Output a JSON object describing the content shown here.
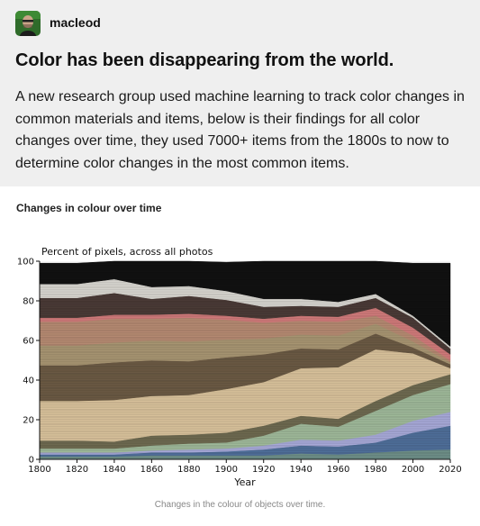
{
  "post": {
    "username": "macleod",
    "title": "Color has been disappearing from the world.",
    "body": "A new research group used machine learning to track color changes in common materials and items, below is their findings for all color changes over time, they used 7000+ items from the 1800s to now to determine color changes in the most common items."
  },
  "chart_heading": "Changes in colour over time",
  "caption": "Changes in the colour of objects over time.",
  "chart_data": {
    "type": "area",
    "title": "Percent of pixels, across all photos",
    "xlabel": "Year",
    "ylabel": "",
    "xlim": [
      1800,
      2020
    ],
    "ylim": [
      0,
      100
    ],
    "x_ticks": [
      1800,
      1820,
      1840,
      1860,
      1880,
      1900,
      1920,
      1940,
      1960,
      1980,
      2000,
      2020
    ],
    "y_ticks": [
      0,
      20,
      40,
      60,
      80,
      100
    ],
    "x": [
      1800,
      1820,
      1840,
      1860,
      1880,
      1900,
      1920,
      1940,
      1960,
      1980,
      2000,
      2020
    ],
    "series": [
      {
        "color": "#6e8f88",
        "values": [
          1.5,
          1.5,
          1.5,
          2,
          2,
          2,
          2,
          3,
          2.5,
          3.5,
          4.5,
          5
        ]
      },
      {
        "color": "#4f6f9a",
        "values": [
          1,
          1,
          1,
          1.5,
          1.5,
          2,
          3,
          4,
          4,
          5,
          9,
          12
        ]
      },
      {
        "color": "#a7a9d8",
        "values": [
          1,
          1,
          1,
          1,
          1.5,
          1.5,
          2,
          3,
          3,
          4,
          6,
          7
        ]
      },
      {
        "color": "#9fb99a",
        "values": [
          2,
          2,
          2,
          2.5,
          3,
          3,
          5,
          8,
          7,
          12,
          13,
          14
        ]
      },
      {
        "color": "#6e6a50",
        "values": [
          4,
          4,
          3.5,
          5,
          4.5,
          5,
          5,
          4,
          4,
          5,
          5,
          5
        ]
      },
      {
        "color": "#d9c29b",
        "values": [
          20,
          20,
          21,
          20,
          20,
          22,
          22,
          24,
          26,
          26,
          16,
          3
        ]
      },
      {
        "color": "#6b5a44",
        "values": [
          18,
          18,
          19,
          18,
          17,
          16,
          14,
          10,
          9,
          8,
          3,
          2
        ]
      },
      {
        "color": "#a89572",
        "values": [
          10,
          10,
          10,
          10,
          10,
          9,
          8,
          7,
          7,
          5,
          3,
          1
        ]
      },
      {
        "color": "#b68a72",
        "values": [
          12,
          12,
          12,
          11,
          12,
          10,
          8,
          7,
          7,
          4,
          3,
          1
        ]
      },
      {
        "color": "#d07a7a",
        "values": [
          2,
          2,
          2,
          2,
          2,
          2,
          2,
          2.5,
          2.5,
          4,
          4,
          3
        ]
      },
      {
        "color": "#4a3a36",
        "values": [
          10,
          10,
          11,
          8,
          9,
          8,
          6,
          5,
          5,
          5,
          5,
          3
        ]
      },
      {
        "color": "#d8d6d0",
        "values": [
          7,
          7,
          7,
          6,
          5,
          4.5,
          4,
          3.5,
          2.5,
          2,
          1,
          1
        ]
      },
      {
        "color": "#111111",
        "values": [
          10.5,
          10.5,
          9.5,
          13.5,
          12.5,
          14.5,
          19.5,
          19,
          21,
          22.5,
          26.5,
          42
        ]
      }
    ]
  }
}
